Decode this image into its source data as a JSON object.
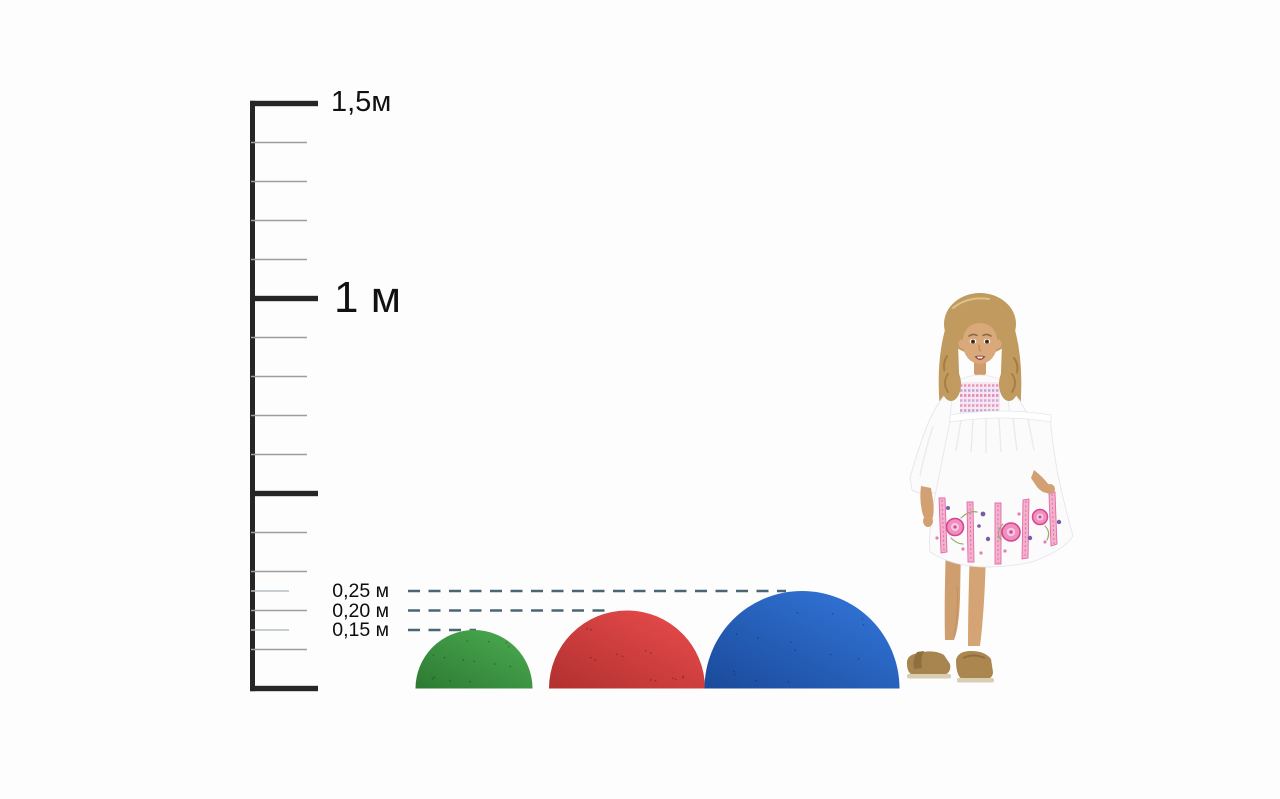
{
  "background": "#fdfdfd",
  "ruler": {
    "color": "#262626",
    "minor_tick_color": "#9e9e9e",
    "half_tick_color": "#b4bec4",
    "max_m": 1.5,
    "major_step_m": 0.5,
    "minor_step_m": 0.1,
    "half_ticks_m": [
      0.25,
      0.15
    ],
    "labeled_ticks": [
      {
        "value_m": 1.5,
        "text": "1,5м"
      },
      {
        "value_m": 1.0,
        "text": "1 м"
      }
    ]
  },
  "height_markers": {
    "line_color": "#4a6675",
    "items": [
      {
        "label": "0,25 м",
        "value_m": 0.25
      },
      {
        "label": "0,20 м",
        "value_m": 0.2
      },
      {
        "label": "0,15 м",
        "value_m": 0.15
      }
    ]
  },
  "domes": [
    {
      "name": "green-dome",
      "height_m": 0.15,
      "color_light": "#46a34b",
      "color_dark": "#2d7a33"
    },
    {
      "name": "red-dome",
      "height_m": 0.2,
      "color_light": "#e04747",
      "color_dark": "#b23030"
    },
    {
      "name": "blue-dome",
      "height_m": 0.25,
      "color_light": "#2f6fd0",
      "color_dark": "#1a4a9a"
    }
  ],
  "person": {
    "role": "child shown for scale"
  },
  "chart_data": {
    "type": "bar",
    "title": "",
    "categories": [
      "green dome",
      "red dome",
      "blue dome"
    ],
    "values": [
      0.15,
      0.2,
      0.25
    ],
    "value_labels": [
      "0,15 м",
      "0,20 м",
      "0,25 м"
    ],
    "ylabel": "",
    "ylim": [
      0,
      1.5
    ],
    "axis_tick_labels": [
      "1,5м",
      "1 м"
    ],
    "reference_lines_m": [
      0.25,
      0.2,
      0.15
    ],
    "grid": false,
    "legend": false
  }
}
